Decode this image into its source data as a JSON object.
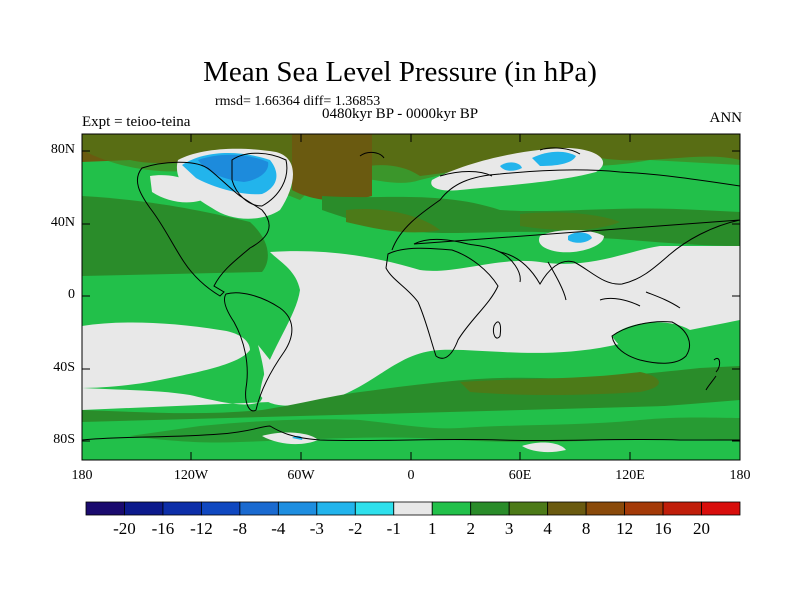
{
  "title": "Mean Sea Level Pressure (in hPa)",
  "stats": "rmsd= 1.66364 diff= 1.36853",
  "subtitle": "0480kyr BP - 0000kyr BP",
  "expt": "Expt = teioo-teina",
  "season": "ANN",
  "y_ticks": [
    "80N",
    "40N",
    "0",
    "40S",
    "80S"
  ],
  "x_ticks": [
    "180",
    "120W",
    "60W",
    "0",
    "60E",
    "120E",
    "180"
  ],
  "colorbar": {
    "colors": [
      "#1a0a6e",
      "#0c1a8c",
      "#0d2ea8",
      "#1048c0",
      "#1a6ad0",
      "#1e8ee0",
      "#22b4ec",
      "#2ee0ec",
      "#e8e8e8",
      "#22c04a",
      "#2a8c2a",
      "#4c7a18",
      "#6a5a10",
      "#8a4a0a",
      "#a43a08",
      "#c01e0a",
      "#d80e0c"
    ],
    "labels": [
      "-20",
      "-16",
      "-12",
      "-8",
      "-4",
      "-3",
      "-2",
      "-1",
      "1",
      "2",
      "3",
      "4",
      "8",
      "12",
      "16",
      "20"
    ]
  }
}
